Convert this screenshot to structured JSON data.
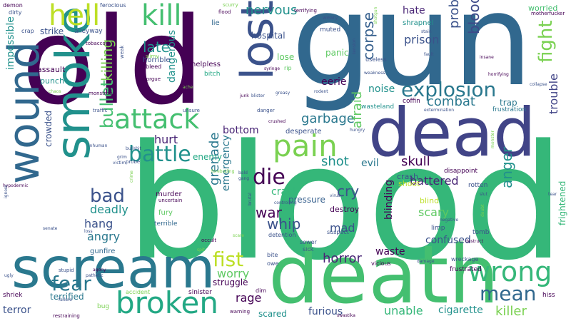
{
  "colors": {
    "background": "#ffffff",
    "palette": [
      "#440154",
      "#482475",
      "#414487",
      "#355f8d",
      "#2a788e",
      "#21918c",
      "#22a884",
      "#44bf70",
      "#7ad151",
      "#bddf26",
      "#fde725"
    ]
  },
  "words": [
    {
      "text": "gun",
      "color": "#31688e"
    },
    {
      "text": "blood",
      "color": "#35b779"
    },
    {
      "text": "old",
      "color": "#440154"
    },
    {
      "text": "death",
      "color": "#44bf70"
    },
    {
      "text": "dead",
      "color": "#414487"
    },
    {
      "text": "scream",
      "color": "#2a788e"
    },
    {
      "text": "lost",
      "color": "#3b528b"
    },
    {
      "text": "smoke",
      "color": "#21918c"
    },
    {
      "text": "wound",
      "color": "#31688e"
    },
    {
      "text": "kill",
      "color": "#44bf70"
    },
    {
      "text": "hell",
      "color": "#bddf26"
    },
    {
      "text": "broken",
      "color": "#22a884"
    },
    {
      "text": "attack",
      "color": "#44bf70"
    },
    {
      "text": "pain",
      "color": "#7ad151"
    },
    {
      "text": "wrong",
      "color": "#35b779"
    },
    {
      "text": "explosion",
      "color": "#2a788e"
    },
    {
      "text": "fear",
      "color": "#2a788e"
    },
    {
      "text": "battle",
      "color": "#21918c"
    },
    {
      "text": "die",
      "color": "#440154"
    },
    {
      "text": "mean",
      "color": "#31688e"
    },
    {
      "text": "fist",
      "color": "#bddf26"
    },
    {
      "text": "fight",
      "color": "#7ad151"
    },
    {
      "text": "bad",
      "color": "#3b528b"
    },
    {
      "text": "nervous",
      "color": "#21918c"
    },
    {
      "text": "combat",
      "color": "#2a788e"
    },
    {
      "text": "bullet",
      "color": "#44bf70"
    },
    {
      "text": "killing",
      "color": "#7ad151"
    },
    {
      "text": "grenade",
      "color": "#2a788e"
    },
    {
      "text": "killer",
      "color": "#7ad151"
    },
    {
      "text": "war",
      "color": "#440154"
    },
    {
      "text": "late",
      "color": "#21918c"
    },
    {
      "text": "cry",
      "color": "#3b528b"
    },
    {
      "text": "whip",
      "color": "#3b528b"
    },
    {
      "text": "corpse",
      "color": "#355f8d"
    },
    {
      "text": "bloody",
      "color": "#3e4989"
    },
    {
      "text": "anger",
      "color": "#21918c"
    },
    {
      "text": "garbage",
      "color": "#2a788e"
    },
    {
      "text": "hate",
      "color": "#482475"
    },
    {
      "text": "prison",
      "color": "#3b528b"
    },
    {
      "text": "problem",
      "color": "#3b528b"
    },
    {
      "text": "trouble",
      "color": "#414487"
    },
    {
      "text": "afraid",
      "color": "#5ec962"
    },
    {
      "text": "skull",
      "color": "#440154"
    },
    {
      "text": "hurt",
      "color": "#482475"
    },
    {
      "text": "worry",
      "color": "#5ec962"
    },
    {
      "text": "horror",
      "color": "#482475"
    },
    {
      "text": "mad",
      "color": "#3b528b"
    },
    {
      "text": "angry",
      "color": "#2a788e"
    },
    {
      "text": "deadly",
      "color": "#21918c"
    },
    {
      "text": "hang",
      "color": "#3b528b"
    },
    {
      "text": "scary",
      "color": "#5ec962"
    },
    {
      "text": "shot",
      "color": "#21918c"
    },
    {
      "text": "bottom",
      "color": "#482475"
    },
    {
      "text": "battered",
      "color": "#482475"
    },
    {
      "text": "noise",
      "color": "#21918c"
    },
    {
      "text": "evil",
      "color": "#2a788e"
    },
    {
      "text": "crack",
      "color": "#35b779"
    },
    {
      "text": "confused",
      "color": "#3b528b"
    },
    {
      "text": "rage",
      "color": "#440154"
    },
    {
      "text": "unable",
      "color": "#35b779"
    },
    {
      "text": "terrified",
      "color": "#2a788e"
    },
    {
      "text": "terror",
      "color": "#3b528b"
    },
    {
      "text": "emergency",
      "color": "#2a788e"
    },
    {
      "text": "enemy",
      "color": "#22a884"
    },
    {
      "text": "crowded",
      "color": "#3b528b"
    },
    {
      "text": "impossible",
      "color": "#21918c"
    },
    {
      "text": "strike",
      "color": "#3b528b"
    },
    {
      "text": "dangerous",
      "color": "#21918c"
    },
    {
      "text": "blinding",
      "color": "#440154"
    },
    {
      "text": "furious",
      "color": "#3b528b"
    },
    {
      "text": "cigarette",
      "color": "#21918c"
    },
    {
      "text": "frightened",
      "color": "#35b779"
    },
    {
      "text": "struggle",
      "color": "#440154"
    },
    {
      "text": "scared",
      "color": "#21918c"
    },
    {
      "text": "waste",
      "color": "#440154"
    },
    {
      "text": "lose",
      "color": "#5ec962"
    },
    {
      "text": "panic",
      "color": "#5ec962"
    },
    {
      "text": "eerie",
      "color": "#440154"
    },
    {
      "text": "hospital",
      "color": "#3b528b"
    },
    {
      "text": "pressure",
      "color": "#355f8d"
    },
    {
      "text": "destroy",
      "color": "#440154"
    },
    {
      "text": "crash",
      "color": "#3b528b"
    },
    {
      "text": "shoot",
      "color": "#bddf26"
    },
    {
      "text": "blind",
      "color": "#bddf26"
    },
    {
      "text": "trap",
      "color": "#2a788e"
    },
    {
      "text": "desperate",
      "color": "#3b528b"
    },
    {
      "text": "assault",
      "color": "#440154"
    },
    {
      "text": "punch",
      "color": "#21918c"
    },
    {
      "text": "horrible",
      "color": "#3b528b"
    },
    {
      "text": "gunfire",
      "color": "#31688e"
    },
    {
      "text": "murder",
      "color": "#440154"
    },
    {
      "text": "fury",
      "color": "#5ec962"
    },
    {
      "text": "terrible",
      "color": "#31688e"
    },
    {
      "text": "worried",
      "color": "#44bf70"
    },
    {
      "text": "alleyway",
      "color": "#3b528b"
    },
    {
      "text": "muted",
      "color": "#3b528b"
    },
    {
      "text": "shrapnel",
      "color": "#21918c"
    },
    {
      "text": "coffin",
      "color": "#440154"
    },
    {
      "text": "wasteland",
      "color": "#21918c"
    },
    {
      "text": "lie",
      "color": "#31688e"
    },
    {
      "text": "helpless",
      "color": "#440154"
    },
    {
      "text": "bitch",
      "color": "#22a884"
    },
    {
      "text": "bleed",
      "color": "#440154"
    },
    {
      "text": "frustrated",
      "color": "#440154"
    },
    {
      "text": "frustration",
      "color": "#2a788e"
    },
    {
      "text": "disappoint",
      "color": "#440154"
    },
    {
      "text": "rotten",
      "color": "#3b528b"
    },
    {
      "text": "tomb",
      "color": "#3b528b"
    },
    {
      "text": "limp",
      "color": "#3b528b"
    },
    {
      "text": "wreckage",
      "color": "#3b528b"
    },
    {
      "text": "sinister",
      "color": "#440154"
    },
    {
      "text": "bite",
      "color": "#3b528b"
    },
    {
      "text": "owe",
      "color": "#3b528b"
    },
    {
      "text": "sick",
      "color": "#3b528b"
    },
    {
      "text": "sewer",
      "color": "#3b528b"
    },
    {
      "text": "vicious",
      "color": "#440154"
    },
    {
      "text": "detention",
      "color": "#3b528b"
    },
    {
      "text": "suspect",
      "color": "#3b528b"
    },
    {
      "text": "rip",
      "color": "#5ec962"
    },
    {
      "text": "hiss",
      "color": "#440154"
    },
    {
      "text": "bug",
      "color": "#7ad151"
    },
    {
      "text": "warning",
      "color": "#440154"
    },
    {
      "text": "dim",
      "color": "#440154"
    },
    {
      "text": "weak",
      "color": "#3b528b"
    },
    {
      "text": "slimy",
      "color": "#7ad151"
    },
    {
      "text": "morgue",
      "color": "#440154"
    },
    {
      "text": "crap",
      "color": "#3b528b"
    },
    {
      "text": "dirty",
      "color": "#3b528b"
    },
    {
      "text": "demon",
      "color": "#440154"
    },
    {
      "text": "ferocious",
      "color": "#3b528b"
    },
    {
      "text": "tobacco",
      "color": "#440154"
    },
    {
      "text": "flood",
      "color": "#440154"
    },
    {
      "text": "scurry",
      "color": "#7ad151"
    },
    {
      "text": "terrifying",
      "color": "#440154"
    },
    {
      "text": "weary",
      "color": "#3b528b"
    },
    {
      "text": "motherfucker",
      "color": "#440154"
    },
    {
      "text": "stain",
      "color": "#3b528b"
    },
    {
      "text": "fault",
      "color": "#3b528b"
    },
    {
      "text": "insane",
      "color": "#440154"
    },
    {
      "text": "horrifying",
      "color": "#440154"
    },
    {
      "text": "collapse",
      "color": "#3b528b"
    },
    {
      "text": "weakness",
      "color": "#3b528b"
    },
    {
      "text": "extermination",
      "color": "#3b528b"
    },
    {
      "text": "destruct",
      "color": "#440154"
    },
    {
      "text": "damage",
      "color": "#3b528b"
    },
    {
      "text": "negative",
      "color": "#3b528b"
    },
    {
      "text": "useless",
      "color": "#3b528b"
    },
    {
      "text": "tension",
      "color": "#3b528b"
    },
    {
      "text": "shotgun",
      "color": "#7ad151"
    },
    {
      "text": "junk",
      "color": "#440154"
    },
    {
      "text": "blister",
      "color": "#3b528b"
    },
    {
      "text": "syringe",
      "color": "#440154"
    },
    {
      "text": "rodent",
      "color": "#3b528b"
    },
    {
      "text": "greasy",
      "color": "#3b528b"
    },
    {
      "text": "crushed",
      "color": "#440154"
    },
    {
      "text": "danger",
      "color": "#3b528b"
    },
    {
      "text": "unsure",
      "color": "#3b528b"
    },
    {
      "text": "traffic",
      "color": "#3b528b"
    },
    {
      "text": "monstrous",
      "color": "#440154"
    },
    {
      "text": "chaos",
      "color": "#7ad151"
    },
    {
      "text": "inhuman",
      "color": "#3b528b"
    },
    {
      "text": "grim",
      "color": "#3b528b"
    },
    {
      "text": "victim",
      "color": "#3b528b"
    },
    {
      "text": "probe",
      "color": "#3b528b"
    },
    {
      "text": "hypodermic",
      "color": "#440154"
    },
    {
      "text": "ignore",
      "color": "#3b528b"
    },
    {
      "text": "senate",
      "color": "#3b528b"
    },
    {
      "text": "loss",
      "color": "#3b528b"
    },
    {
      "text": "stupid",
      "color": "#3b528b"
    },
    {
      "text": "agony",
      "color": "#440154"
    },
    {
      "text": "pathetic",
      "color": "#3b528b"
    },
    {
      "text": "shriek",
      "color": "#440154"
    },
    {
      "text": "failure",
      "color": "#3b528b"
    },
    {
      "text": "restraining",
      "color": "#440154"
    },
    {
      "text": "accident",
      "color": "#7ad151"
    },
    {
      "text": "uncertain",
      "color": "#440154"
    },
    {
      "text": "occult",
      "color": "#440154"
    },
    {
      "text": "spit",
      "color": "#7ad151"
    },
    {
      "text": "scare",
      "color": "#7ad151"
    },
    {
      "text": "brutal",
      "color": "#3b528b"
    },
    {
      "text": "foreboding",
      "color": "#7ad151"
    },
    {
      "text": "bald",
      "color": "#3b528b"
    },
    {
      "text": "gang",
      "color": "#3b528b"
    },
    {
      "text": "controlling",
      "color": "#3b528b"
    },
    {
      "text": "virus",
      "color": "#3b528b"
    },
    {
      "text": "monster",
      "color": "#7ad151"
    },
    {
      "text": "slut",
      "color": "#3b528b"
    },
    {
      "text": "tear",
      "color": "#3b528b"
    },
    {
      "text": "doubt",
      "color": "#7ad151"
    },
    {
      "text": "hungry",
      "color": "#3b528b"
    },
    {
      "text": "swastika",
      "color": "#440154"
    },
    {
      "text": "crime",
      "color": "#7ad151"
    },
    {
      "text": "bullshit",
      "color": "#3b528b"
    },
    {
      "text": "ugly",
      "color": "#3b528b"
    },
    {
      "text": "ache",
      "color": "#7ad151"
    }
  ]
}
